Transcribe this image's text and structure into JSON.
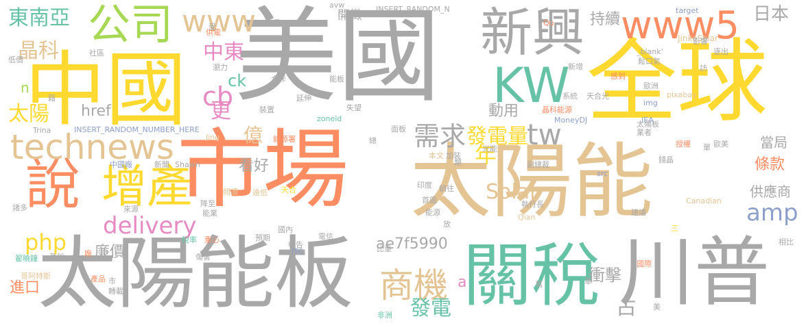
{
  "palette": {
    "gray": "#a8a8a8",
    "orange": "#fc8d62",
    "tan": "#e5c494",
    "yellow": "#ffd92f",
    "green": "#66c2a5",
    "blue": "#8da0cb",
    "lime": "#a6d854",
    "pink": "#e78ac3"
  },
  "words": [
    {
      "text": "美國",
      "color": "gray"
    },
    {
      "text": "中國",
      "color": "yellow"
    },
    {
      "text": "公司",
      "color": "lime"
    },
    {
      "text": "市場",
      "color": "orange"
    },
    {
      "text": "太陽能",
      "color": "tan"
    },
    {
      "text": "全球",
      "color": "yellow"
    },
    {
      "text": "太陽能板",
      "color": "gray"
    },
    {
      "text": "關稅",
      "color": "green"
    },
    {
      "text": "川普",
      "color": "gray"
    },
    {
      "text": "說",
      "color": "orange"
    },
    {
      "text": "增產",
      "color": "yellow"
    },
    {
      "text": "新興",
      "color": "gray"
    },
    {
      "text": "KW",
      "color": "green"
    },
    {
      "text": "www5",
      "color": "orange"
    },
    {
      "text": "www",
      "color": "tan"
    },
    {
      "text": "technews",
      "color": "tan"
    },
    {
      "text": "delivery",
      "color": "pink"
    },
    {
      "text": "商機",
      "color": "tan"
    },
    {
      "text": "tw",
      "color": "gray"
    },
    {
      "text": "amp",
      "color": "blue"
    },
    {
      "text": "東南亞",
      "color": "green"
    },
    {
      "text": "晶科",
      "color": "tan"
    },
    {
      "text": "太陽",
      "color": "yellow"
    },
    {
      "text": "中東",
      "color": "pink"
    },
    {
      "text": "cb",
      "color": "pink"
    },
    {
      "text": "需求",
      "color": "gray"
    },
    {
      "text": "發電量",
      "color": "yellow"
    },
    {
      "text": "發電",
      "color": "green"
    },
    {
      "text": "php",
      "color": "yellow"
    },
    {
      "text": "Solar",
      "color": "tan"
    },
    {
      "text": "日本",
      "color": "gray"
    },
    {
      "text": "持續",
      "color": "gray"
    },
    {
      "text": "開徵",
      "color": "gray"
    },
    {
      "text": "更",
      "color": "pink"
    },
    {
      "text": "href",
      "color": "gray"
    },
    {
      "text": "ck",
      "color": "green"
    },
    {
      "text": "億",
      "color": "tan"
    },
    {
      "text": "年",
      "color": "yellow"
    },
    {
      "text": "動用",
      "color": "gray"
    },
    {
      "text": "看好",
      "color": "gray"
    },
    {
      "text": "條款",
      "color": "orange"
    },
    {
      "text": "供應商",
      "color": "gray"
    },
    {
      "text": "當局",
      "color": "gray"
    },
    {
      "text": "衝擊",
      "color": "gray"
    },
    {
      "text": "占",
      "color": "gray"
    },
    {
      "text": "廉價",
      "color": "gray"
    },
    {
      "text": "進口",
      "color": "orange"
    },
    {
      "text": "ae7f5990",
      "color": "gray"
    },
    {
      "text": "a",
      "color": "pink"
    },
    {
      "text": "n",
      "color": "lime"
    },
    {
      "text": "INSERT_RANDOM_NUMBER_HERE",
      "color": "blue"
    },
    {
      "text": "INSERT_RANDOM_N",
      "color": "gray"
    },
    {
      "text": "zoneid",
      "color": "green"
    },
    {
      "text": "JinkoSolar",
      "color": "tan"
    },
    {
      "text": "MoneyDJ",
      "color": "blue"
    },
    {
      "text": "pixabay",
      "color": "tan"
    },
    {
      "text": "Trina",
      "color": "gray"
    },
    {
      "text": "Shawn",
      "color": "gray"
    },
    {
      "text": "Jing",
      "color": "tan"
    },
    {
      "text": "Qian",
      "color": "tan"
    },
    {
      "text": "Canadian",
      "color": "tan"
    },
    {
      "text": "ITC",
      "color": "blue"
    },
    {
      "text": "img",
      "color": "blue"
    },
    {
      "text": "src",
      "color": "blue"
    },
    {
      "text": "IEA",
      "color": "blue"
    },
    {
      "text": "target",
      "color": "blue"
    },
    {
      "text": "_blank'",
      "color": "gray"
    },
    {
      "text": "avw",
      "color": "gray"
    },
    {
      "text": "Qu",
      "color": "orange"
    },
    {
      "text": "延伸",
      "color": "gray"
    },
    {
      "text": "合作",
      "color": "gray"
    },
    {
      "text": "能板",
      "color": "gray"
    },
    {
      "text": "失望",
      "color": "gray"
    },
    {
      "text": "面板",
      "color": "gray"
    },
    {
      "text": "光能",
      "color": "gray"
    },
    {
      "text": "加裝",
      "color": "gray"
    },
    {
      "text": "本文",
      "color": "tan"
    },
    {
      "text": "能源署",
      "color": "orange"
    },
    {
      "text": "新聞",
      "color": "gray"
    },
    {
      "text": "中國廠",
      "color": "blue"
    },
    {
      "text": "閱讀",
      "color": "tan"
    },
    {
      "text": "遠低",
      "color": "tan"
    },
    {
      "text": "天合",
      "color": "yellow"
    },
    {
      "text": "降至",
      "color": "gray"
    },
    {
      "text": "能業",
      "color": "gray"
    },
    {
      "text": "來源",
      "color": "gray"
    },
    {
      "text": "諸多",
      "color": "gray"
    },
    {
      "text": "國內",
      "color": "gray"
    },
    {
      "text": "稅率",
      "color": "green"
    },
    {
      "text": "重心",
      "color": "orange"
    },
    {
      "text": "預期",
      "color": "gray"
    },
    {
      "text": "報告",
      "color": "gray"
    },
    {
      "text": "電信",
      "color": "gray"
    },
    {
      "text": "比重",
      "color": "gray"
    },
    {
      "text": "傷害",
      "color": "gray"
    },
    {
      "text": "盈餘",
      "color": "gray"
    },
    {
      "text": "翟曉鐘",
      "color": "green"
    },
    {
      "text": "哥阿特斯",
      "color": "tan"
    },
    {
      "text": "轉載",
      "color": "gray"
    },
    {
      "text": "產品",
      "color": "orange"
    },
    {
      "text": "印度",
      "color": "gray"
    },
    {
      "text": "首圖",
      "color": "gray"
    },
    {
      "text": "銷往",
      "color": "gray"
    },
    {
      "text": "能源",
      "color": "gray"
    },
    {
      "text": "執行長",
      "color": "gray"
    },
    {
      "text": "錢晶",
      "color": "gray"
    },
    {
      "text": "建議",
      "color": "gray"
    },
    {
      "text": "業者",
      "color": "gray"
    },
    {
      "text": "授權",
      "color": "orange"
    },
    {
      "text": "歐美",
      "color": "gray"
    },
    {
      "text": "副總裁",
      "color": "gray"
    },
    {
      "text": "系統",
      "color": "gray"
    },
    {
      "text": "天合光",
      "color": "gray"
    },
    {
      "text": "歐洲",
      "color": "gray"
    },
    {
      "text": "感到",
      "color": "orange"
    },
    {
      "text": "晶科能源",
      "color": "orange"
    },
    {
      "text": "太陽板",
      "color": "gray"
    },
    {
      "text": "新增",
      "color": "gray"
    },
    {
      "text": "影響",
      "color": "gray"
    },
    {
      "text": "逐出",
      "color": "gray"
    },
    {
      "text": "鬆口氣",
      "color": "gray"
    },
    {
      "text": "瀏力",
      "color": "gray"
    },
    {
      "text": "供電",
      "color": "orange"
    },
    {
      "text": "社區",
      "color": "gray"
    },
    {
      "text": "低價",
      "color": "gray"
    },
    {
      "text": "裝置",
      "color": "gray"
    },
    {
      "text": "非洲",
      "color": "green"
    },
    {
      "text": "國際",
      "color": "orange"
    },
    {
      "text": "相比",
      "color": "gray"
    },
    {
      "text": "總",
      "color": "gray"
    },
    {
      "text": "類",
      "color": "gray"
    },
    {
      "text": "具",
      "color": "gray"
    },
    {
      "text": "受",
      "color": "gray"
    },
    {
      "text": "藉",
      "color": "gray"
    },
    {
      "text": "萬",
      "color": "gray"
    },
    {
      "text": "華",
      "color": "gray"
    },
    {
      "text": "美",
      "color": "gray"
    },
    {
      "text": "單",
      "color": "gray"
    },
    {
      "text": "訪",
      "color": "gray"
    },
    {
      "text": "三",
      "color": "yellow"
    },
    {
      "text": "廠",
      "color": "orange"
    },
    {
      "text": "市",
      "color": "gray"
    },
    {
      "text": "放",
      "color": "gray"
    }
  ]
}
